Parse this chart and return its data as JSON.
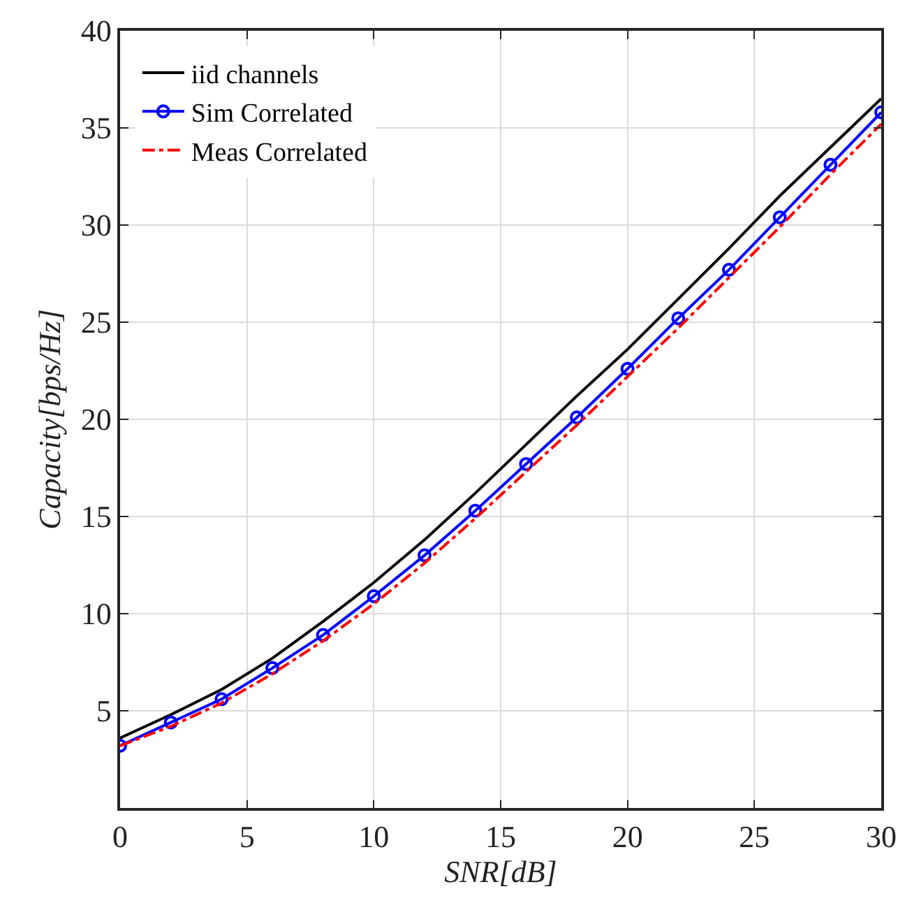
{
  "chart_data": {
    "type": "line",
    "xlabel": "SNR[dB]",
    "ylabel": "Capacity[bps/Hz]",
    "x": [
      0,
      2,
      4,
      6,
      8,
      10,
      12,
      14,
      16,
      18,
      20,
      22,
      24,
      26,
      28,
      30
    ],
    "xlim": [
      0,
      30
    ],
    "xticks": [
      0,
      5,
      10,
      15,
      20,
      25,
      30
    ],
    "ylim": [
      0,
      40
    ],
    "yticks": [
      5,
      10,
      15,
      20,
      25,
      30,
      35,
      40
    ],
    "grid": true,
    "legend": "top left",
    "series": [
      {
        "name": "iid channels",
        "color": "#000000",
        "line_style": "solid",
        "marker": "none",
        "values": [
          3.6,
          4.8,
          6.1,
          7.7,
          9.6,
          11.6,
          13.8,
          16.2,
          18.7,
          21.2,
          23.6,
          26.2,
          28.8,
          31.5,
          34.0,
          36.5
        ]
      },
      {
        "name": "Sim Correlated",
        "color": "#0000ff",
        "line_style": "solid",
        "marker": "circle",
        "values": [
          3.2,
          4.4,
          5.6,
          7.2,
          8.9,
          10.9,
          13.0,
          15.3,
          17.7,
          20.1,
          22.6,
          25.2,
          27.7,
          30.4,
          33.1,
          35.8
        ]
      },
      {
        "name": "Meas Correlated",
        "color": "#ff0000",
        "line_style": "dashdot",
        "marker": "none",
        "values": [
          3.2,
          4.2,
          5.4,
          6.9,
          8.6,
          10.5,
          12.6,
          14.9,
          17.3,
          19.7,
          22.2,
          24.7,
          27.3,
          29.9,
          32.6,
          35.2
        ]
      }
    ]
  }
}
